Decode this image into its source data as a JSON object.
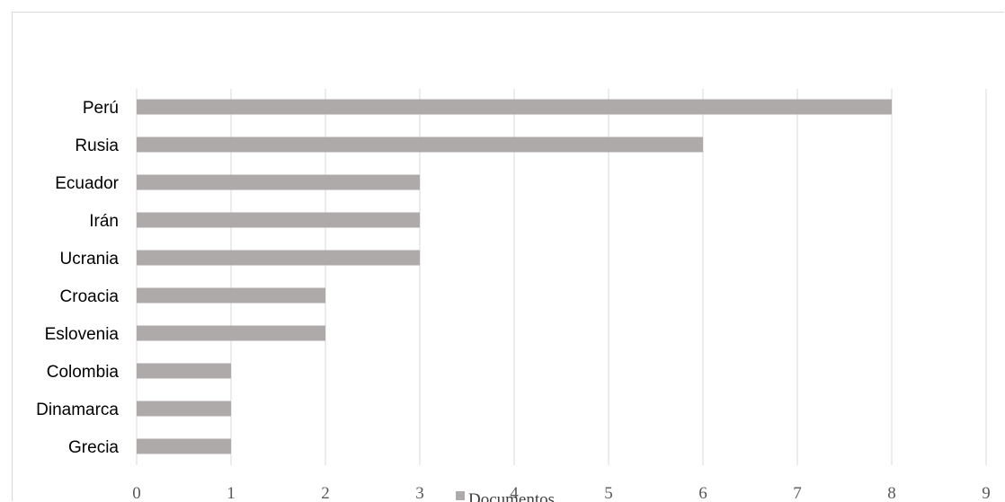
{
  "chart_data": {
    "type": "bar",
    "orientation": "horizontal",
    "categories": [
      "Perú",
      "Rusia",
      "Ecuador",
      "Irán",
      "Ucrania",
      "Croacia",
      "Eslovenia",
      "Colombia",
      "Dinamarca",
      "Grecia"
    ],
    "series": [
      {
        "name": "Documentos",
        "values": [
          8,
          6,
          3,
          3,
          3,
          2,
          2,
          1,
          1,
          1
        ]
      }
    ],
    "xlim": [
      0,
      9
    ],
    "x_ticks": [
      0,
      1,
      2,
      3,
      4,
      5,
      6,
      7,
      8,
      9
    ],
    "grid": "vertical",
    "legend": "bottom",
    "colors": {
      "bar": "#aeaaaa",
      "grid": "#d9d9d9"
    }
  }
}
